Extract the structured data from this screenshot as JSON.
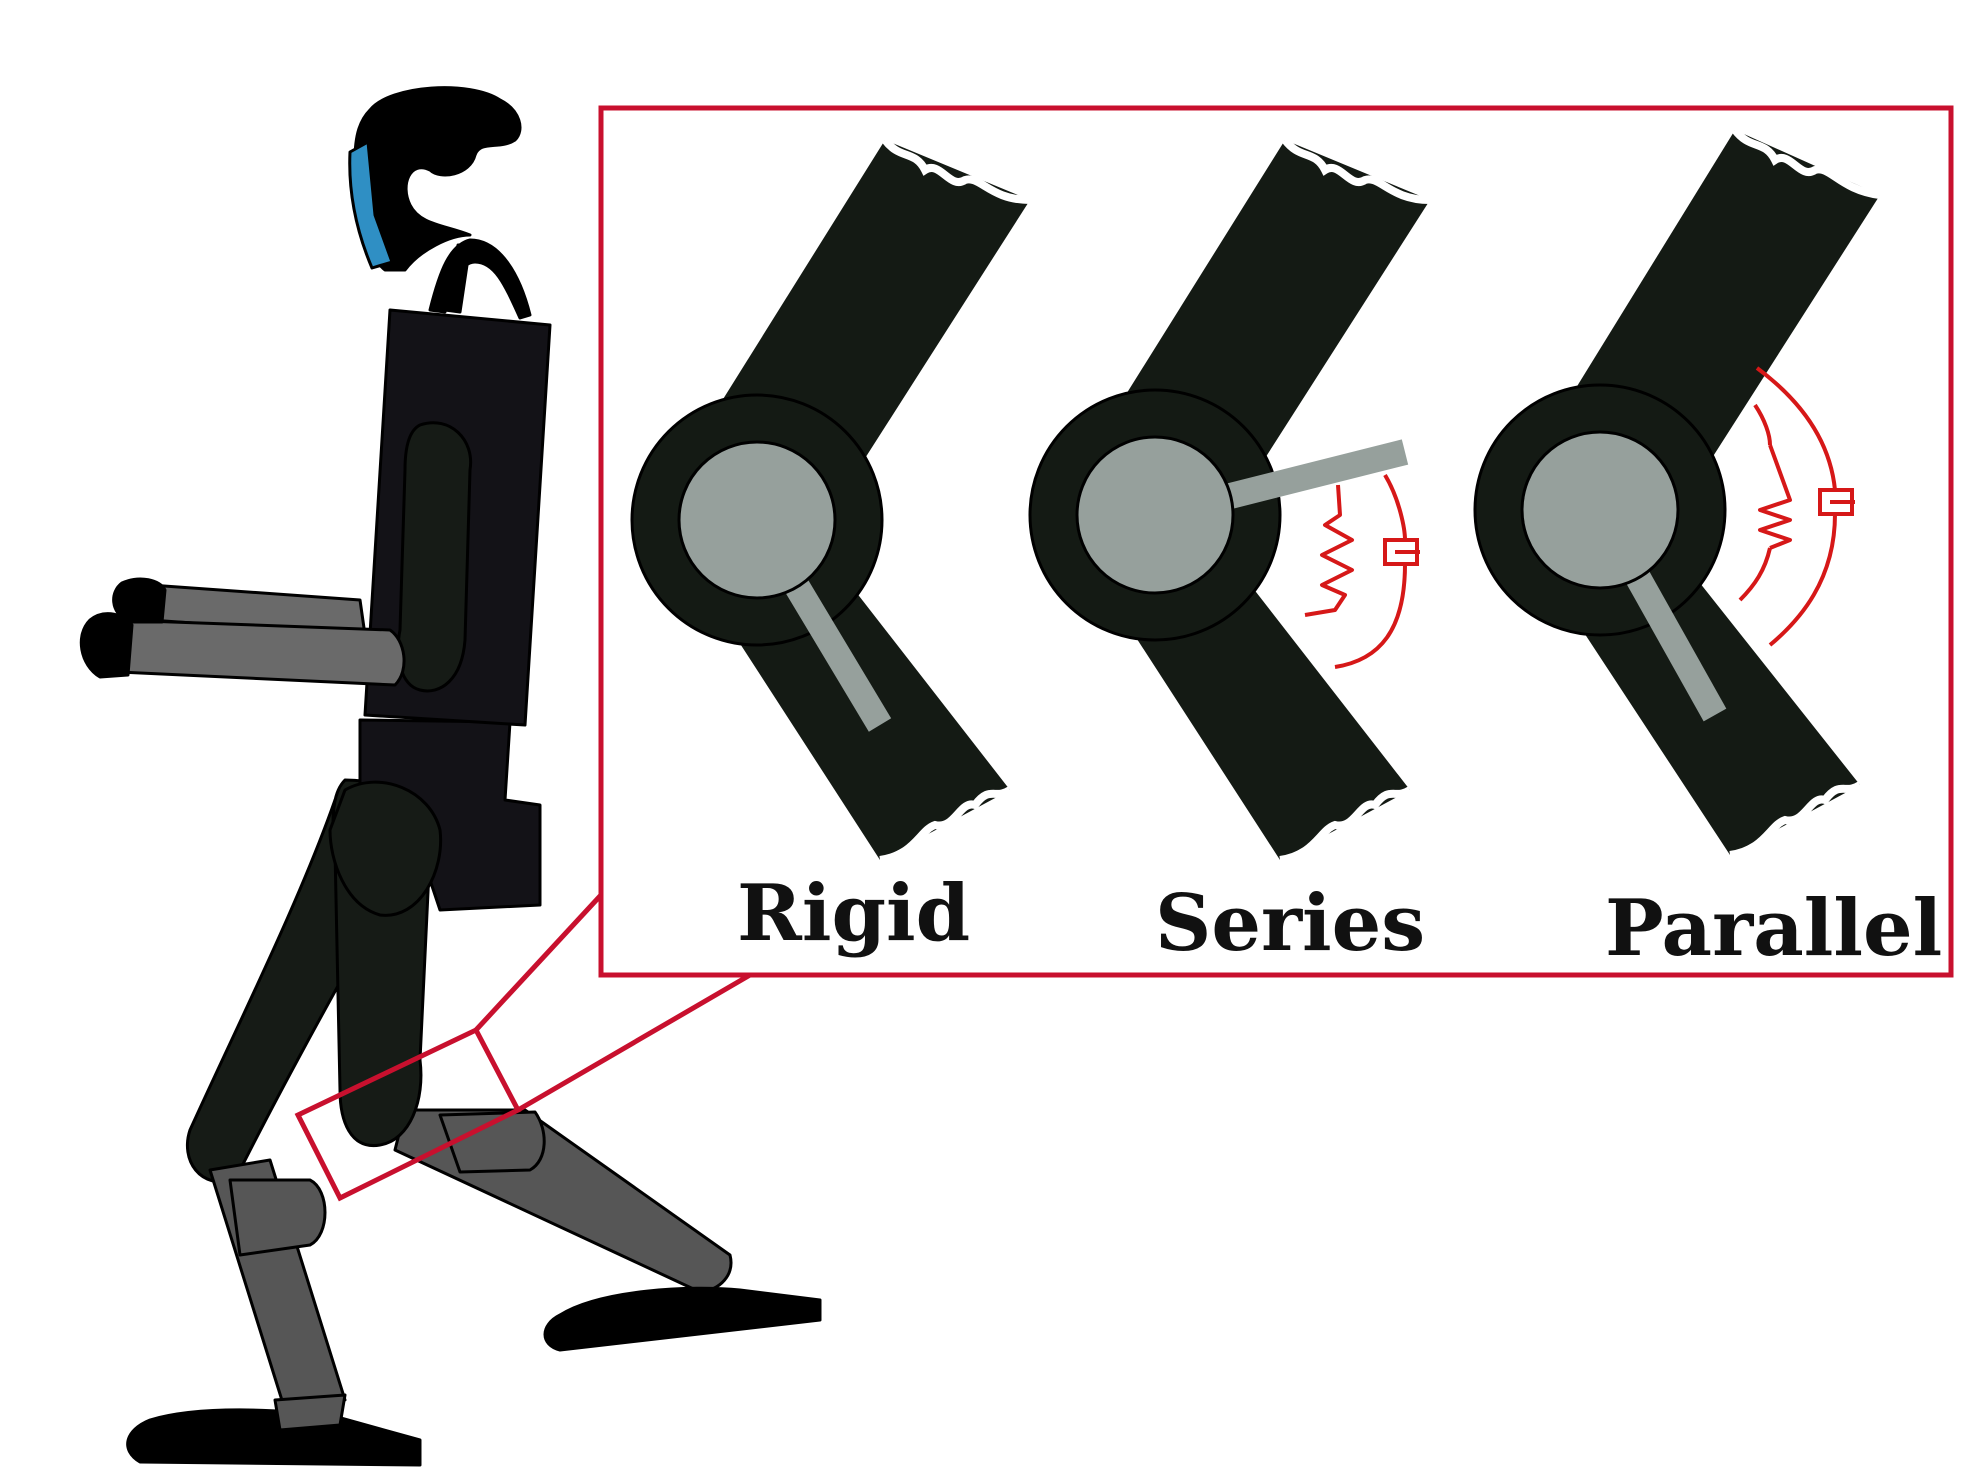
{
  "labels": {
    "rigid": "Rigid",
    "series": "Series",
    "parallel": "Parallel"
  },
  "colors": {
    "background": "#ffffff",
    "highlight_red": "#c8102e",
    "spring_red": "#d61818",
    "joint_dark": "#141a14",
    "joint_disc": "#96a09c",
    "robot_body": "#131217",
    "robot_limb_dark": "#161b16",
    "robot_limb_grey": "#565656",
    "robot_arm_grey": "#6a6a6a",
    "visor_blue": "#2f8fc4"
  },
  "icons": {
    "robot": "humanoid-robot-icon",
    "spring": "spring-icon",
    "damper": "damper-icon"
  }
}
